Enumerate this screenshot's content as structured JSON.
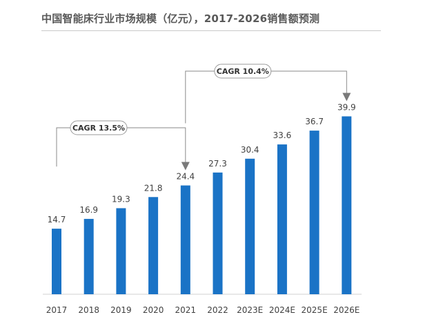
{
  "page_title": "中国智能床行业市场规模（亿元），2017-2026销售额预测",
  "chart_data": {
    "type": "bar",
    "title": "中国智能床行业市场规模（亿元），2017-2026销售额预测",
    "xlabel": "",
    "ylabel": "",
    "categories": [
      "2017",
      "2018",
      "2019",
      "2020",
      "2021",
      "2022",
      "2023E",
      "2024E",
      "2025E",
      "2026E"
    ],
    "values": [
      14.7,
      16.9,
      19.3,
      21.8,
      24.4,
      27.3,
      30.4,
      33.6,
      36.7,
      39.9
    ],
    "ylim": [
      0,
      44
    ],
    "grid": false,
    "bar_color": "#1a73c6",
    "annotations": [
      {
        "label": "CAGR 13.5%",
        "from": "2017",
        "to": "2021"
      },
      {
        "label": "CAGR 10.4%",
        "from": "2021",
        "to": "2026E"
      }
    ]
  }
}
